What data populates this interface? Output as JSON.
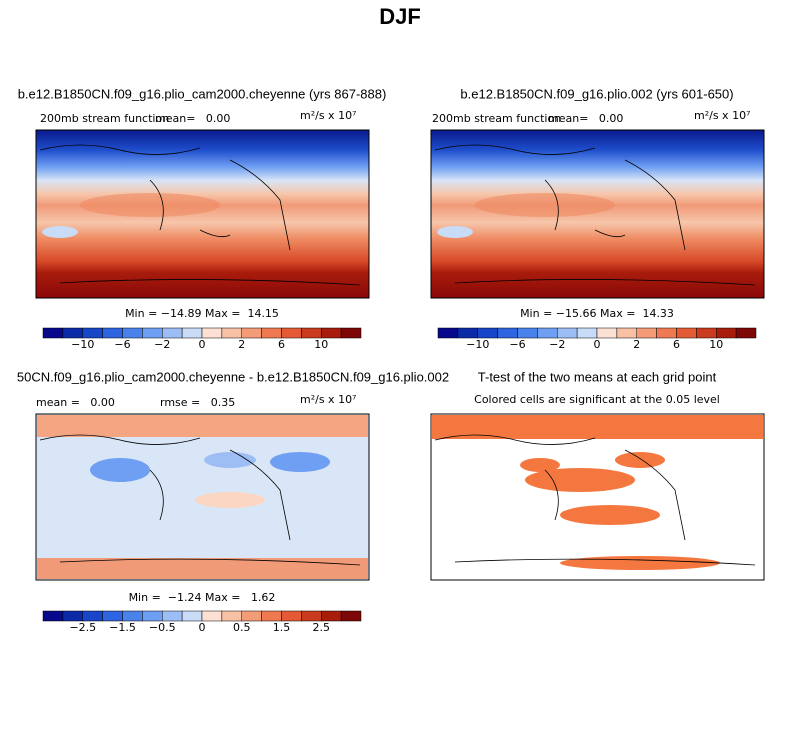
{
  "title": "DJF",
  "panels": [
    {
      "title": "b.e12.B1850CN.f09_g16.plio_cam2000.cheyenne (yrs 867-888)",
      "left_label": "200mb stream function",
      "center_label": "mean=   0.00",
      "units": "m²/s x 10⁷",
      "stats": "Min = −14.89 Max =  14.15",
      "colorbar_labels": [
        "−10",
        "−6",
        "−2",
        "0",
        "2",
        "6",
        "10"
      ]
    },
    {
      "title": "b.e12.B1850CN.f09_g16.plio.002 (yrs 601-650)",
      "left_label": "200mb stream function",
      "center_label": "mean=   0.00",
      "units": "m²/s x 10⁷",
      "stats": "Min = −15.66 Max =  14.33",
      "colorbar_labels": [
        "−10",
        "−6",
        "−2",
        "0",
        "2",
        "6",
        "10"
      ]
    },
    {
      "title": "50CN.f09_g16.plio_cam2000.cheyenne - b.e12.B1850CN.f09_g16.plio.002",
      "left_label": "mean =   0.00",
      "center_label": "rmse =   0.35",
      "units": "m²/s x 10⁷",
      "stats": "Min =  −1.24 Max =   1.62",
      "colorbar_labels": [
        "−2.5",
        "−1.5",
        "−0.5",
        "0",
        "0.5",
        "1.5",
        "2.5"
      ]
    },
    {
      "title": "T-test of the two means at each grid point",
      "subtitle": "Colored cells are significant at the 0.05 level"
    }
  ]
}
